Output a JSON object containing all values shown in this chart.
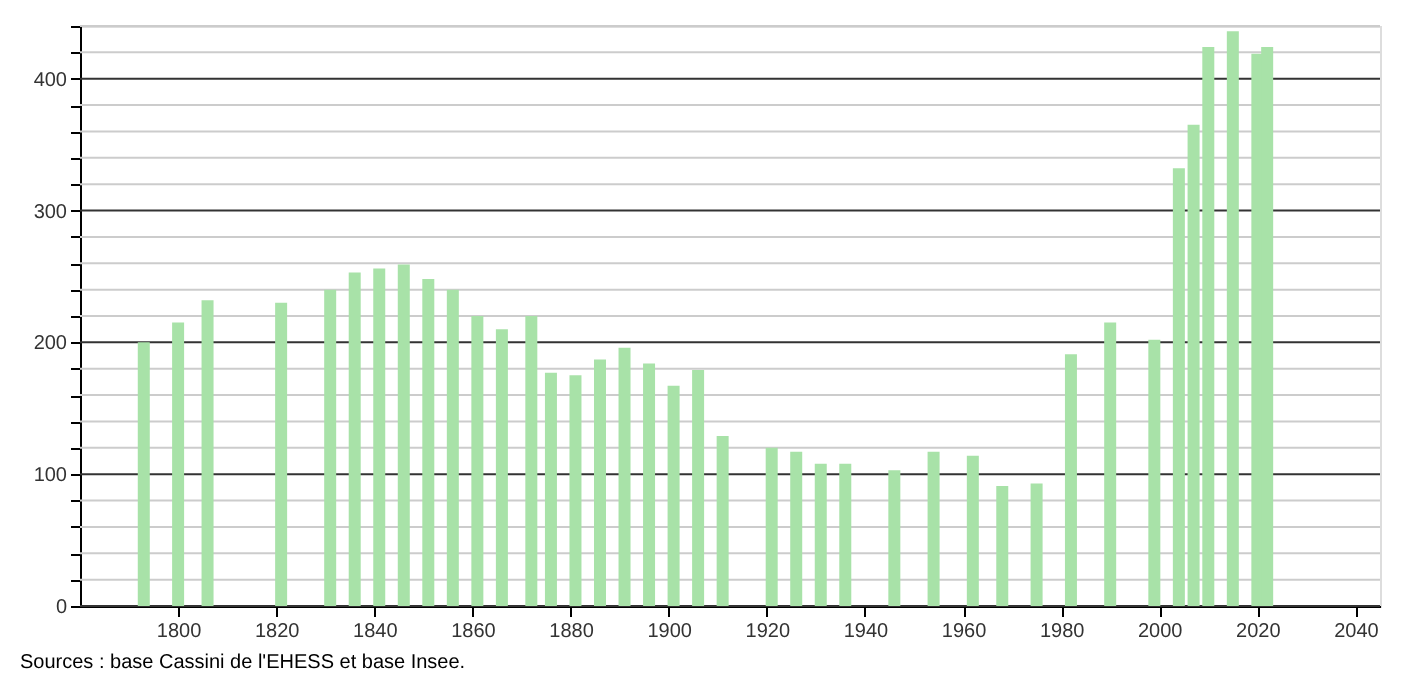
{
  "chart_data": {
    "type": "bar",
    "color": "#a8e2a8",
    "x": [
      1793,
      1800,
      1806,
      1821,
      1831,
      1836,
      1841,
      1846,
      1851,
      1856,
      1861,
      1866,
      1872,
      1876,
      1881,
      1886,
      1891,
      1896,
      1901,
      1906,
      1911,
      1921,
      1926,
      1931,
      1936,
      1946,
      1954,
      1962,
      1968,
      1975,
      1982,
      1990,
      1999,
      2004,
      2007,
      2010,
      2015,
      2020,
      2022
    ],
    "values": [
      200,
      215,
      232,
      230,
      240,
      253,
      256,
      259,
      248,
      240,
      220,
      210,
      220,
      177,
      175,
      187,
      196,
      184,
      167,
      179,
      129,
      120,
      117,
      108,
      108,
      103,
      117,
      114,
      91,
      93,
      191,
      215,
      202,
      332,
      365,
      424,
      436,
      419,
      424
    ],
    "xlim": [
      1780,
      2045
    ],
    "xticks": [
      1800,
      1820,
      1840,
      1860,
      1880,
      1900,
      1920,
      1940,
      1960,
      1980,
      2000,
      2020,
      2040
    ],
    "ylim": [
      0,
      440
    ],
    "yticks": [
      0,
      {
        "value": 20,
        "label": null
      },
      {
        "value": 40,
        "label": null
      },
      {
        "value": 60,
        "label": null
      },
      {
        "value": 80,
        "label": null
      },
      100,
      {
        "value": 120,
        "label": null
      },
      {
        "value": 140,
        "label": null
      },
      {
        "value": 160,
        "label": null
      },
      {
        "value": 180,
        "label": null
      },
      200,
      {
        "value": 220,
        "label": null
      },
      {
        "value": 240,
        "label": null
      },
      {
        "value": 260,
        "label": null
      },
      {
        "value": 280,
        "label": null
      },
      300,
      {
        "value": 320,
        "label": null
      },
      {
        "value": 340,
        "label": null
      },
      {
        "value": 360,
        "label": null
      },
      {
        "value": 380,
        "label": null
      },
      400,
      {
        "value": 420,
        "label": null
      },
      {
        "value": 440,
        "label": null
      }
    ],
    "grid": "y",
    "annotations": [
      "Sources : base Cassini de l'EHESS et base Insee."
    ]
  }
}
